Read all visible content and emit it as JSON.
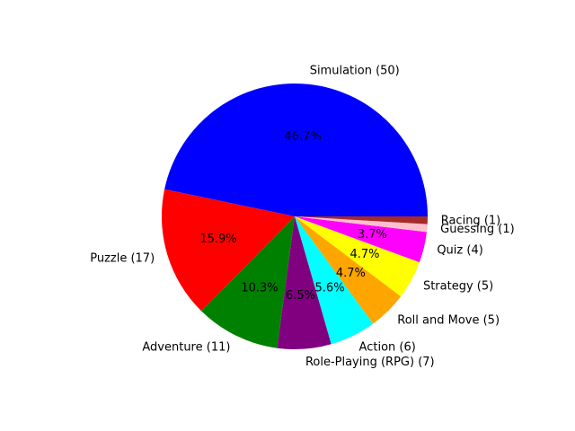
{
  "chart_data": {
    "type": "pie",
    "categories": [
      "Simulation (50)",
      "Puzzle (17)",
      "Adventure (11)",
      "Role-Playing (RPG) (7)",
      "Action (6)",
      "Roll and Move (5)",
      "Strategy (5)",
      "Quiz (4)",
      "Guessing (1)",
      "Racing (1)"
    ],
    "values": [
      50,
      17,
      11,
      7,
      6,
      5,
      5,
      4,
      1,
      1
    ],
    "percent_labels": [
      "46.7%",
      "15.9%",
      "10.3%",
      "6.5%",
      "5.6%",
      "4.7%",
      "4.7%",
      "3.7%",
      "",
      ""
    ],
    "colors": [
      "#0000ff",
      "#ff0000",
      "#008000",
      "#800080",
      "#00ffff",
      "#ffa500",
      "#ffff00",
      "#ff00ff",
      "#ffc0cb",
      "#a52a2a"
    ],
    "start_angle_deg": 0,
    "direction": "counterclockwise"
  }
}
